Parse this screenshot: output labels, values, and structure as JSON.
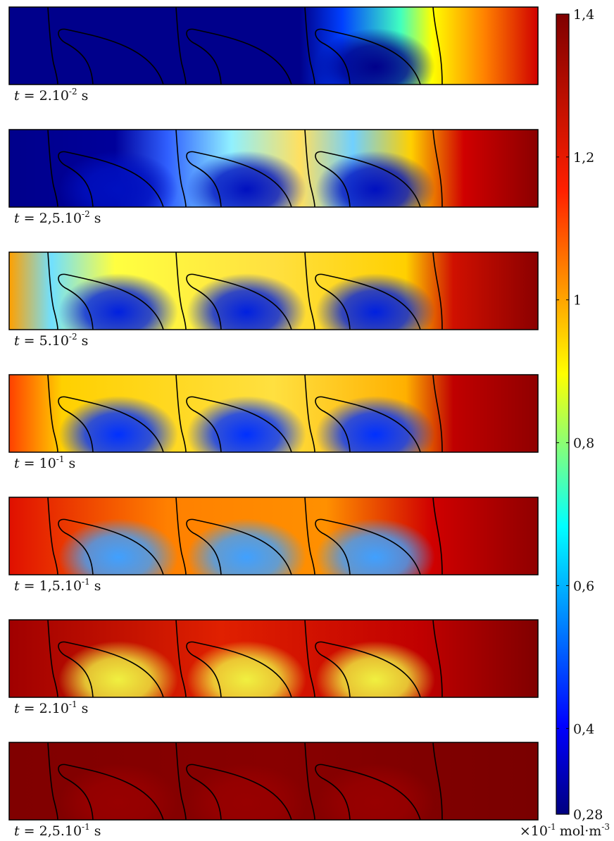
{
  "panels": [
    {
      "variable": "t",
      "equals": "= 2.10",
      "exponent": "-2",
      "unit": "s"
    },
    {
      "variable": "t",
      "equals": "= 2,5.10",
      "exponent": "-2",
      "unit": "s"
    },
    {
      "variable": "t",
      "equals": "= 5.10",
      "exponent": "-2",
      "unit": "s"
    },
    {
      "variable": "t",
      "equals": "= 10",
      "exponent": "-1",
      "unit": "s"
    },
    {
      "variable": "t",
      "equals": "= 1,5.10",
      "exponent": "-1",
      "unit": "s"
    },
    {
      "variable": "t",
      "equals": "= 2.10",
      "exponent": "-1",
      "unit": "s"
    },
    {
      "variable": "t",
      "equals": "= 2,5.10",
      "exponent": "-1",
      "unit": "s"
    }
  ],
  "chart_data": {
    "type": "colorbar",
    "ylim": [
      0.28,
      1.4
    ],
    "yticks": [
      {
        "value": 0.28,
        "label": "0,28"
      },
      {
        "value": 0.4,
        "label": "0,4"
      },
      {
        "value": 0.6,
        "label": "0,6"
      },
      {
        "value": 0.8,
        "label": "0,8"
      },
      1,
      {
        "value": 1.2,
        "label": "1,2"
      },
      {
        "value": 1.4,
        "label": "1,4"
      }
    ],
    "units": {
      "multiplier": "×10",
      "multiplier_exponent": "-1",
      "unit": "mol·m",
      "unit_exponent": "-3"
    }
  }
}
